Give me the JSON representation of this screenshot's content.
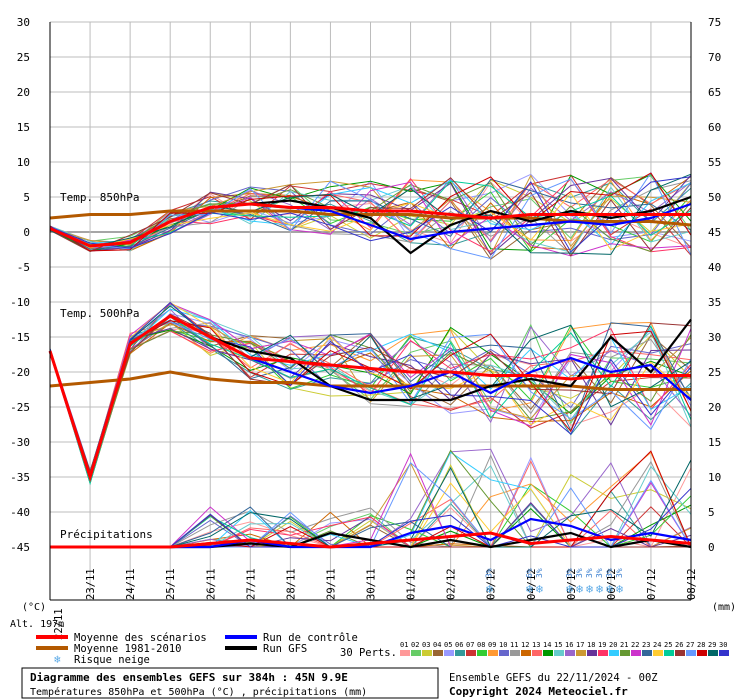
{
  "chart_data": {
    "type": "line",
    "title": "Diagramme des ensembles GEFS sur 384h : 45N 9.9E",
    "subtitle": "Températures 850hPa et 500hPa (°C) , précipitations (mm)",
    "run_info": "Ensemble GEFS du 22/11/2024 - 00Z",
    "copyright": "Copyright 2024 Meteociel.fr",
    "altitude_label": "Alt. 197m",
    "left_unit": "(°C)",
    "right_unit": "(mm)",
    "left_ticks": [
      "30",
      "25",
      "20",
      "15",
      "10",
      "5",
      "0",
      "-5",
      "-10",
      "-15",
      "-20",
      "-25",
      "-30",
      "-35",
      "-40",
      "-45"
    ],
    "right_ticks": [
      "75",
      "70",
      "65",
      "60",
      "55",
      "50",
      "45",
      "40",
      "35",
      "30",
      "25",
      "20",
      "15",
      "10",
      "5",
      "0"
    ],
    "ylim_temp": [
      -45,
      30
    ],
    "ylim_precip": [
      0,
      75
    ],
    "x_dates": [
      "22/11",
      "23/11",
      "24/11",
      "25/11",
      "26/11",
      "27/11",
      "28/11",
      "29/11",
      "30/11",
      "01/12",
      "02/12",
      "03/12",
      "04/12",
      "05/12",
      "06/12",
      "07/12",
      "08/12"
    ],
    "x_tick_labels": [
      "23/11",
      "24/11",
      "25/11",
      "26/11",
      "27/11",
      "28/11",
      "29/11",
      "30/11",
      "01/12",
      "02/12",
      "03/12",
      "04/12",
      "05/12",
      "06/12",
      "07/12",
      "08/12"
    ],
    "section_labels": {
      "t850": "Temp. 850hPa",
      "t500": "Temp. 500hPa",
      "precip": "Précipitations"
    },
    "legend": {
      "mean": "Moyenne des scénarios",
      "clim": "Moyenne 1981-2010",
      "snow": "Risque neige",
      "control": "Run de contrôle",
      "gfs": "Run GFS",
      "perts_label": "30 Perts.",
      "perts": [
        "01",
        "02",
        "03",
        "04",
        "05",
        "06",
        "07",
        "08",
        "09",
        "10",
        "11",
        "12",
        "13",
        "14",
        "15",
        "16",
        "17",
        "18",
        "19",
        "20",
        "21",
        "22",
        "23",
        "24",
        "25",
        "26",
        "27",
        "28",
        "29",
        "30"
      ],
      "pert_colors": [
        "#ff9999",
        "#66cc66",
        "#cccc33",
        "#996633",
        "#9999ff",
        "#339999",
        "#cc3333",
        "#33cc33",
        "#ff9933",
        "#6666cc",
        "#999999",
        "#cc6600",
        "#ff6666",
        "#009900",
        "#66cccc",
        "#9966cc",
        "#cc9933",
        "#663399",
        "#ff3366",
        "#33ccff",
        "#669933",
        "#cc33cc",
        "#336699",
        "#ffcc33",
        "#00cc99",
        "#993333",
        "#6699ff",
        "#cc0000",
        "#006666",
        "#3333cc"
      ]
    },
    "snow_risk": [
      {
        "date": "03/12",
        "pct": "3%"
      },
      {
        "date": "04/12",
        "pct": "6%"
      },
      {
        "date": "04/12",
        "pct": "3%"
      },
      {
        "date": "05/12",
        "pct": "3%"
      },
      {
        "date": "05/12",
        "pct": "3%"
      },
      {
        "date": "05/12",
        "pct": "3%"
      },
      {
        "date": "05/12",
        "pct": "3%"
      },
      {
        "date": "06/12",
        "pct": "3%"
      },
      {
        "date": "06/12",
        "pct": "3%"
      }
    ],
    "series": [
      {
        "name": "Moyenne des scénarios",
        "color": "#ff0000",
        "group": "t850",
        "values": [
          0.5,
          -2,
          -1.5,
          1.5,
          3.5,
          4,
          3.5,
          3.5,
          3,
          3,
          2.5,
          2,
          2.5,
          2.5,
          2.5,
          2.5,
          2.5
        ]
      },
      {
        "name": "Moyenne 1981-2010",
        "color": "#b35900",
        "group": "t850",
        "values": [
          2,
          2.5,
          2.5,
          3,
          3,
          3,
          3,
          2.5,
          2.5,
          2.5,
          2,
          2,
          2,
          1.5,
          1.5,
          1.5,
          1
        ]
      },
      {
        "name": "Run de contrôle",
        "color": "#0000ff",
        "group": "t850",
        "values": [
          0.5,
          -2,
          -1.5,
          1.5,
          3.5,
          4,
          3.5,
          3,
          1,
          -1,
          0,
          0.5,
          1,
          1.5,
          1,
          2,
          4
        ]
      },
      {
        "name": "Run GFS",
        "color": "#000000",
        "group": "t850",
        "values": [
          0.5,
          -2,
          -1.5,
          1.5,
          3.5,
          4,
          4.5,
          3.5,
          2,
          -3,
          1,
          3,
          1.5,
          3,
          2,
          3,
          5
        ]
      },
      {
        "name": "Moyenne des scénarios",
        "color": "#ff0000",
        "group": "t500",
        "values": [
          -17,
          -35,
          -16,
          -12,
          -15,
          -18,
          -18.5,
          -19,
          -19.5,
          -20,
          -20,
          -20.5,
          -20.5,
          -21,
          -20.5,
          -20.5,
          -20.5
        ]
      },
      {
        "name": "Moyenne 1981-2010",
        "color": "#b35900",
        "group": "t500",
        "values": [
          -22,
          -21.5,
          -21,
          -20,
          -21,
          -21.5,
          -21.5,
          -22,
          -22,
          -22,
          -22,
          -22,
          -22,
          -22,
          -22.5,
          -22.5,
          -22.5
        ]
      },
      {
        "name": "Run de contrôle",
        "color": "#0000ff",
        "group": "t500",
        "values": [
          -17,
          -35,
          -16,
          -12,
          -15,
          -18,
          -20,
          -22,
          -23,
          -22,
          -20,
          -23,
          -20,
          -18,
          -20,
          -19,
          -24
        ]
      },
      {
        "name": "Run GFS",
        "color": "#000000",
        "group": "t500",
        "values": [
          -17,
          -35,
          -16,
          -12,
          -15,
          -17,
          -18,
          -22,
          -24,
          -24,
          -24,
          -22,
          -21,
          -22,
          -15,
          -20,
          -12.5
        ]
      },
      {
        "name": "Moyenne des scénarios",
        "color": "#ff0000",
        "group": "precip",
        "values": [
          0,
          0,
          0,
          0,
          0.5,
          1,
          0.5,
          0,
          0.5,
          1,
          1.5,
          2,
          0.5,
          1,
          1.5,
          1,
          0.5
        ]
      },
      {
        "name": "Run de contrôle",
        "color": "#0000ff",
        "group": "precip",
        "values": [
          0,
          0,
          0,
          0,
          0,
          1,
          0,
          0,
          0,
          2,
          3,
          1,
          4,
          3,
          1,
          2,
          1
        ]
      },
      {
        "name": "Run GFS",
        "color": "#000000",
        "group": "precip",
        "values": [
          0,
          0,
          0,
          0,
          0,
          0.5,
          0,
          2,
          1,
          0,
          1,
          0,
          1,
          2,
          0,
          1,
          0
        ]
      }
    ]
  }
}
